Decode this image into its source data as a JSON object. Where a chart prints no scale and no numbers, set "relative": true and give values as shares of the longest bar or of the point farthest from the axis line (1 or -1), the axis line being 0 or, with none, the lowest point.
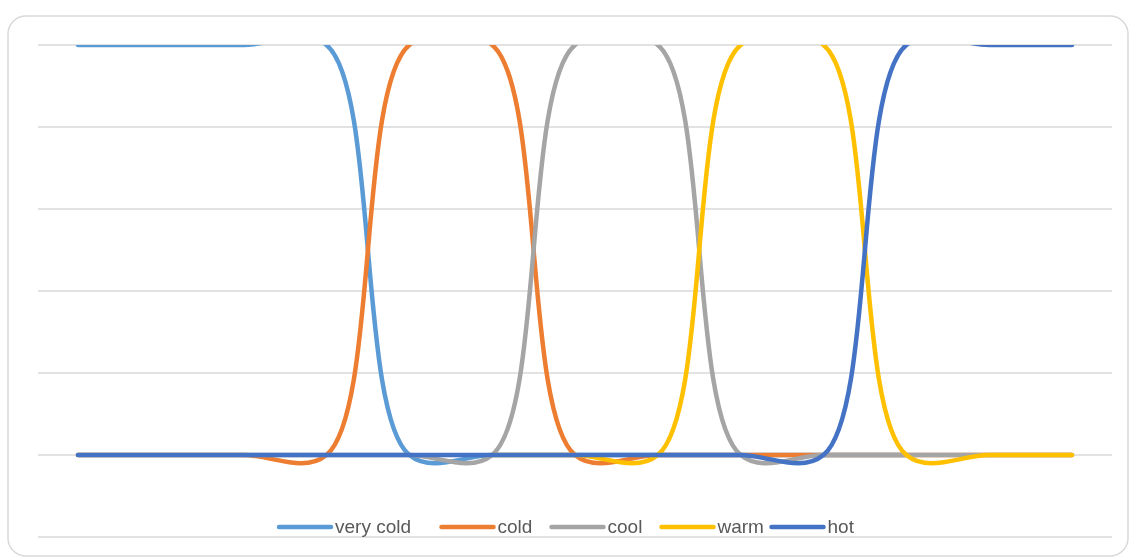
{
  "chart_data": {
    "type": "line",
    "relative": true,
    "grid": "y",
    "legend": "bottom",
    "marker": "none",
    "line_style": "solid",
    "categories": [
      null,
      null,
      null,
      null,
      null,
      null,
      null,
      null,
      null,
      null,
      null,
      null,
      null
    ],
    "series": [
      {
        "name": "very cold",
        "color": "#5b9bd5",
        "values": [
          1,
          1,
          1,
          1,
          0,
          0,
          0,
          0,
          0,
          0,
          0,
          null,
          null
        ]
      },
      {
        "name": "cold",
        "color": "#ed7d31",
        "values": [
          0,
          0,
          0,
          0,
          1,
          1,
          0,
          0,
          0,
          0,
          0,
          0,
          0
        ]
      },
      {
        "name": "cool",
        "color": "#a5a5a5",
        "values": [
          0,
          0,
          0,
          0,
          0,
          0,
          1,
          1,
          0,
          0,
          0,
          0,
          0
        ]
      },
      {
        "name": "warm",
        "color": "#ffc000",
        "values": [
          null,
          null,
          null,
          null,
          null,
          0,
          0,
          0,
          1,
          1,
          0,
          0,
          0
        ]
      },
      {
        "name": "hot",
        "color": "#4472c4",
        "values": [
          0,
          0,
          0,
          0,
          0,
          0,
          0,
          0,
          0,
          0,
          1,
          1,
          1
        ]
      }
    ]
  }
}
